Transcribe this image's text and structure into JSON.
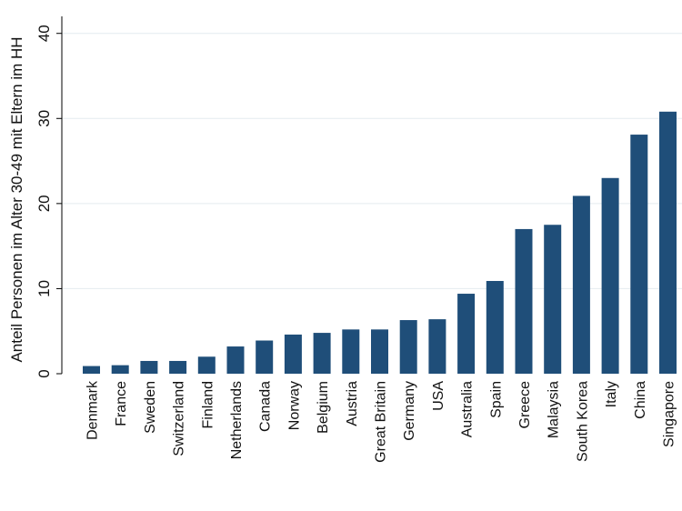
{
  "chart_data": {
    "type": "bar",
    "title": "",
    "xlabel": "",
    "ylabel": "Anteil Personen im Alter 30-49 mit Eltern im HH",
    "ylim": [
      0,
      42
    ],
    "yticks": [
      0,
      10,
      20,
      30,
      40
    ],
    "grid": true,
    "bar_color": "#1f4e79",
    "categories": [
      "Denmark",
      "France",
      "Sweden",
      "Switzerland",
      "Finland",
      "Netherlands",
      "Canada",
      "Norway",
      "Belgium",
      "Austria",
      "Great Britain",
      "Germany",
      "USA",
      "Australia",
      "Spain",
      "Greece",
      "Malaysia",
      "South Korea",
      "Italy",
      "China",
      "Singapore"
    ],
    "values": [
      0.9,
      1.0,
      1.5,
      1.5,
      2.0,
      3.2,
      3.9,
      4.6,
      4.8,
      5.2,
      5.2,
      6.3,
      6.4,
      9.4,
      10.9,
      17.0,
      17.5,
      20.9,
      23.0,
      28.1,
      30.8
    ]
  }
}
